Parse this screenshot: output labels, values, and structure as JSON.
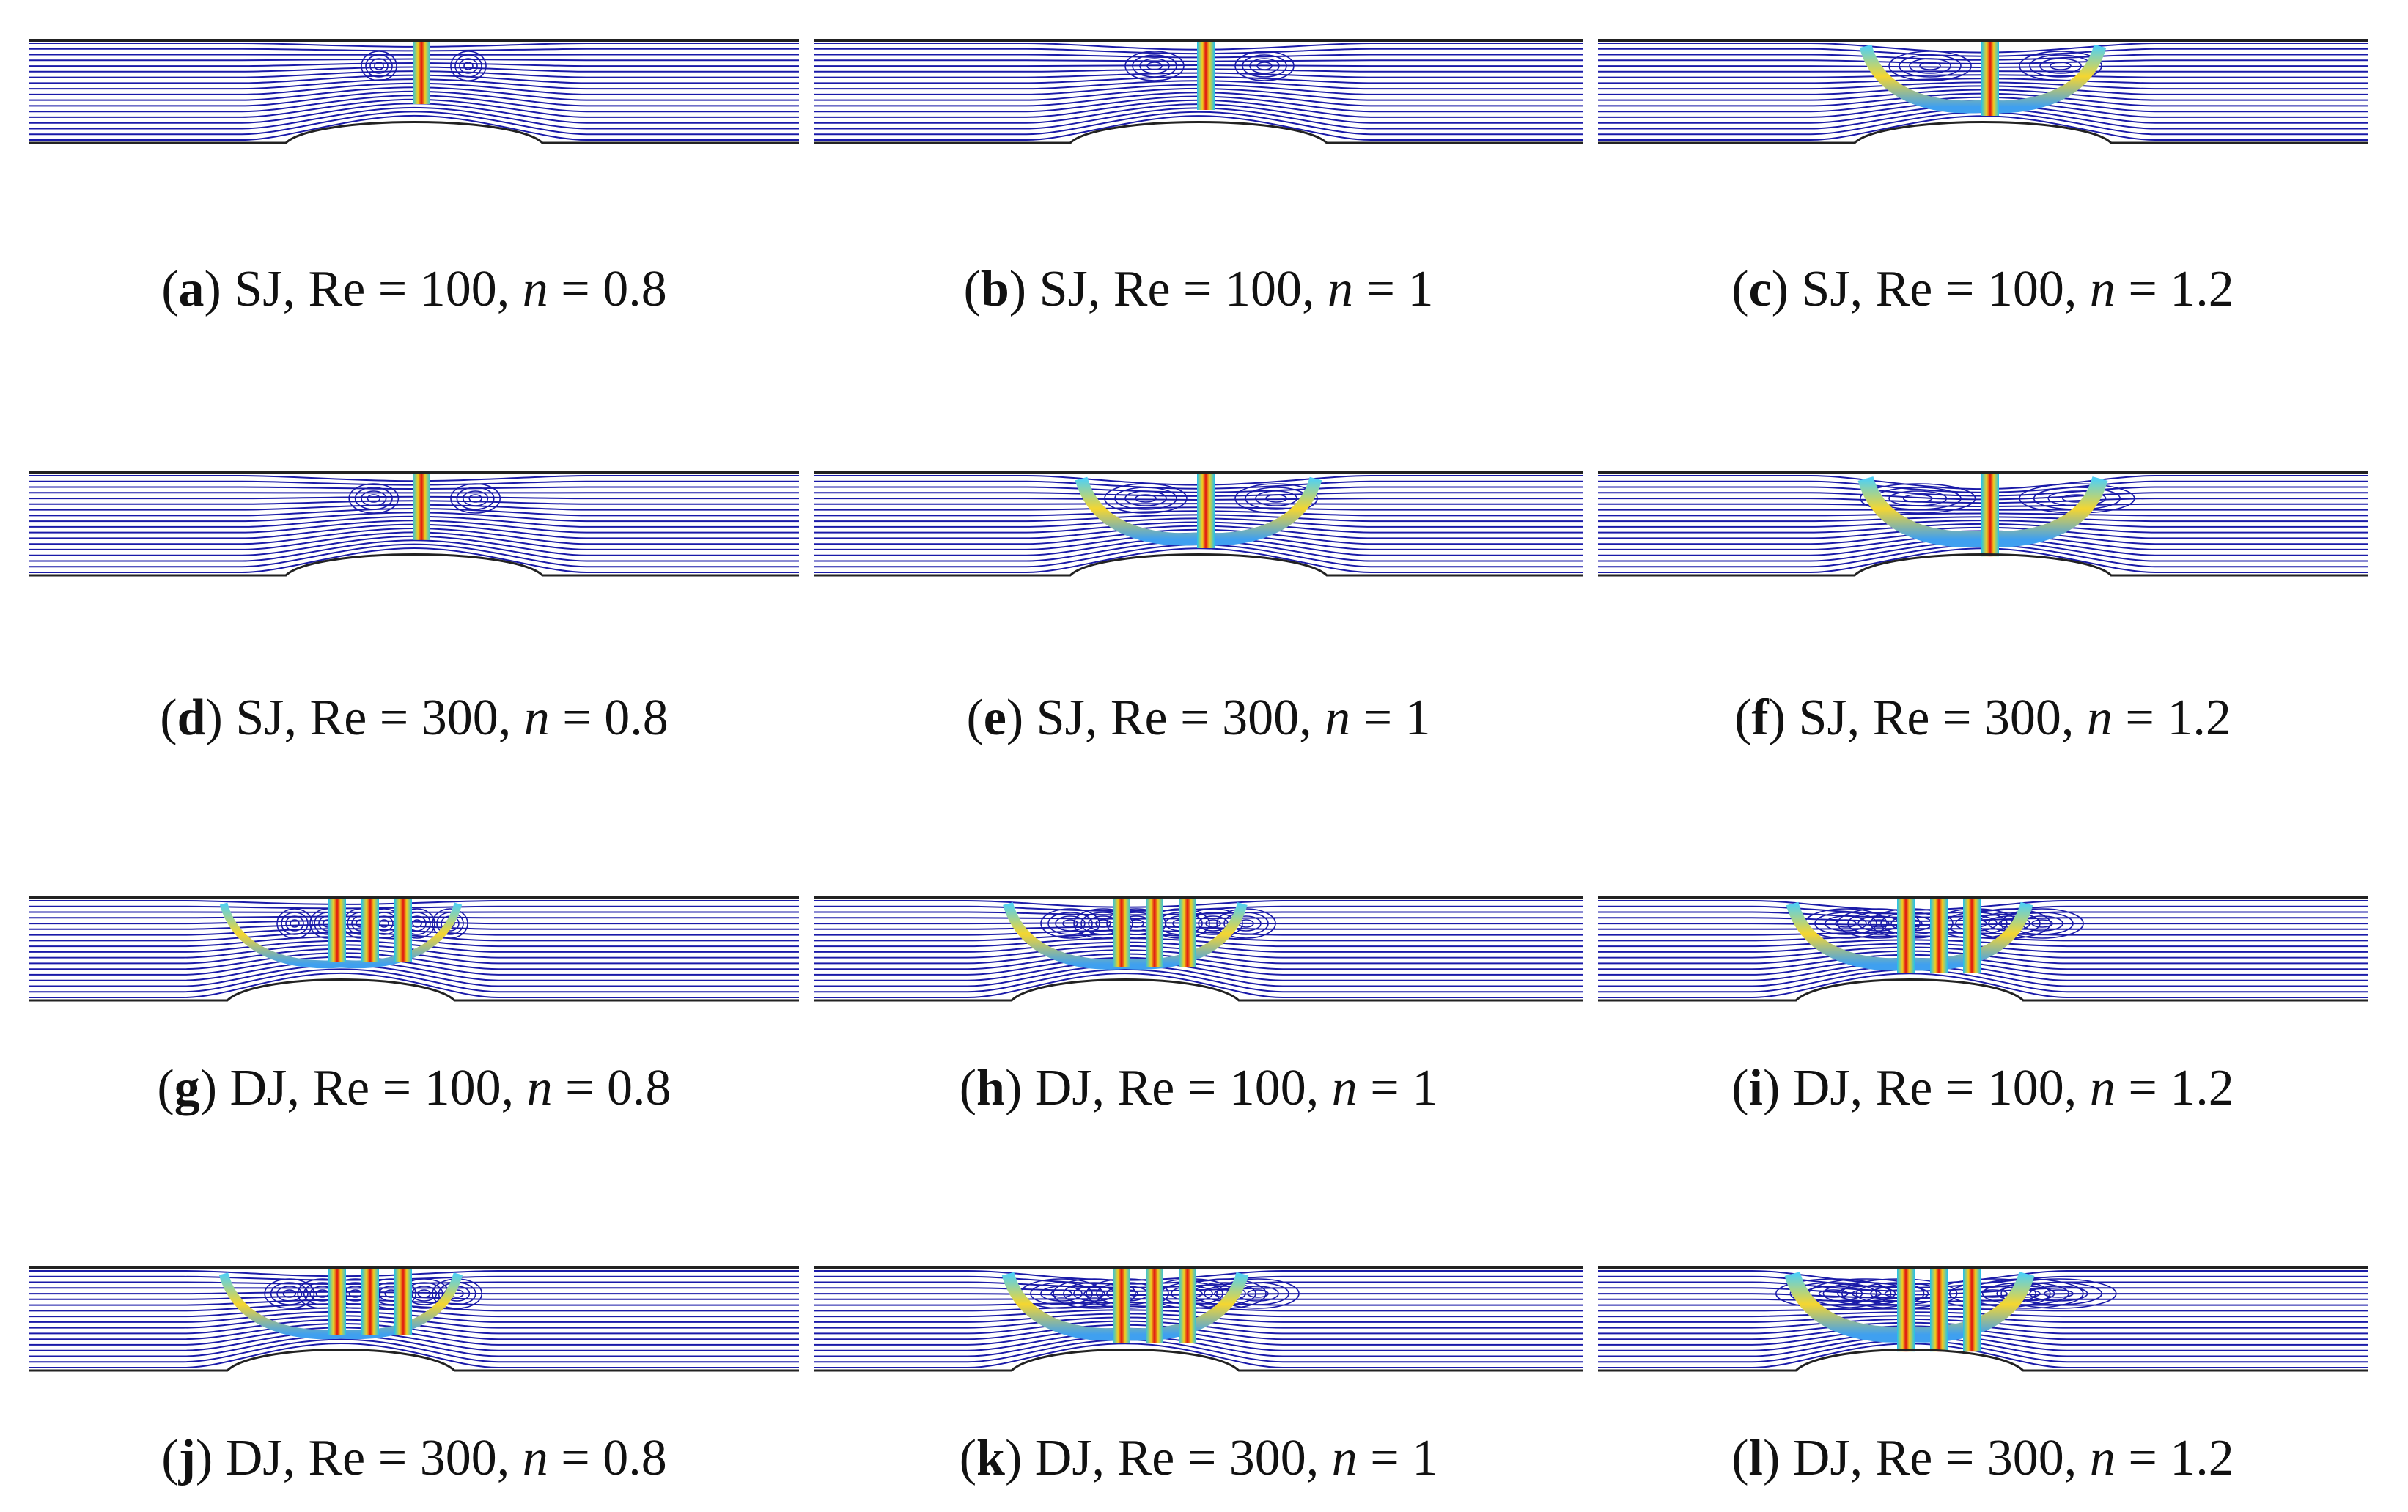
{
  "panels": [
    {
      "id": "a",
      "jet": "SJ",
      "re": "100",
      "n": "0.8",
      "caption_rest": ") SJ, Re = 100, ",
      "n_value": " = 0.8"
    },
    {
      "id": "b",
      "jet": "SJ",
      "re": "100",
      "n": "1",
      "caption_rest": ") SJ, Re = 100, ",
      "n_value": " = 1"
    },
    {
      "id": "c",
      "jet": "SJ",
      "re": "100",
      "n": "1.2",
      "caption_rest": ") SJ, Re = 100, ",
      "n_value": " = 1.2"
    },
    {
      "id": "d",
      "jet": "SJ",
      "re": "300",
      "n": "0.8",
      "caption_rest": ") SJ, Re = 300, ",
      "n_value": " = 0.8"
    },
    {
      "id": "e",
      "jet": "SJ",
      "re": "300",
      "n": "1",
      "caption_rest": ") SJ, Re = 300, ",
      "n_value": " = 1"
    },
    {
      "id": "f",
      "jet": "SJ",
      "re": "300",
      "n": "1.2",
      "caption_rest": ") SJ, Re = 300, ",
      "n_value": " = 1.2"
    },
    {
      "id": "g",
      "jet": "DJ",
      "re": "100",
      "n": "0.8",
      "caption_rest": ") DJ, Re = 100, ",
      "n_value": " = 0.8"
    },
    {
      "id": "h",
      "jet": "DJ",
      "re": "100",
      "n": "1",
      "caption_rest": ") DJ, Re = 100, ",
      "n_value": " = 1"
    },
    {
      "id": "i",
      "jet": "DJ",
      "re": "100",
      "n": "1.2",
      "caption_rest": ") DJ, Re = 100, ",
      "n_value": " = 1.2"
    },
    {
      "id": "j",
      "jet": "DJ",
      "re": "300",
      "n": "0.8",
      "caption_rest": ") DJ, Re = 300, ",
      "n_value": " = 0.8"
    },
    {
      "id": "k",
      "jet": "DJ",
      "re": "300",
      "n": "1",
      "caption_rest": ") DJ, Re = 300, ",
      "n_value": " = 1"
    },
    {
      "id": "l",
      "jet": "DJ",
      "re": "300",
      "n": "1.2",
      "caption_rest": ") DJ, Re = 300, ",
      "n_value": " = 1.2"
    }
  ],
  "symbols": {
    "n": "n",
    "open_paren": "("
  },
  "colors": {
    "streamline": "#1a1aa8",
    "wall": "#222222",
    "jet_core": "#e01010",
    "jet_mid": "#f0d020",
    "jet_edge": "#20c0f0",
    "background": "#ffffff"
  }
}
